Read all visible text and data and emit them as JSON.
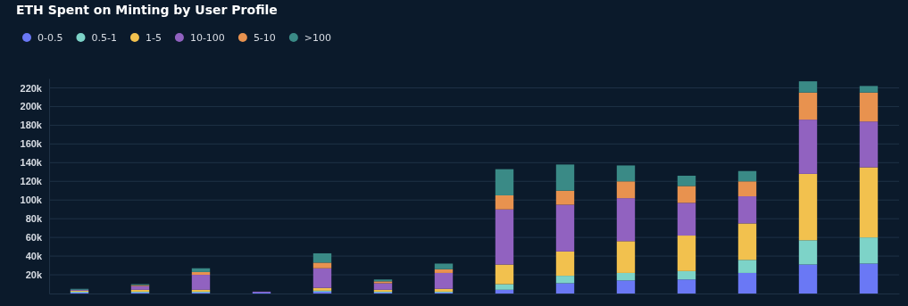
{
  "chart_data": {
    "type": "bar",
    "title": "ETH Spent on Minting by User Profile",
    "categories": [
      null,
      null,
      null,
      null,
      null,
      null,
      null,
      null,
      null,
      null,
      null,
      null,
      null,
      null
    ],
    "stacked": true,
    "legend": "top left",
    "grid": "y",
    "tick_labels": "y",
    "ylim": [
      0,
      230000
    ],
    "yticks": [
      {
        "value": 20000,
        "label": "20k"
      },
      {
        "value": 40000,
        "label": "40k"
      },
      {
        "value": 60000,
        "label": "60k"
      },
      {
        "value": 80000,
        "label": "80k"
      },
      {
        "value": 100000,
        "label": "100k"
      },
      {
        "value": 120000,
        "label": "120k"
      },
      {
        "value": 140000,
        "label": "140k"
      },
      {
        "value": 160000,
        "label": "160k"
      },
      {
        "value": 180000,
        "label": "180k"
      },
      {
        "value": 200000,
        "label": "200k"
      },
      {
        "value": 220000,
        "label": "220k"
      }
    ],
    "series": [
      {
        "name": "0-0.5",
        "color": "#6a78f5",
        "values": [
          1000,
          1000,
          1000,
          1000,
          2000,
          1000,
          1000,
          4000,
          11000,
          14000,
          15000,
          22000,
          31000,
          32000
        ]
      },
      {
        "name": "0.5-1",
        "color": "#7dd3c8",
        "values": [
          1000,
          1000,
          1000,
          0,
          1000,
          1000,
          1000,
          6000,
          8000,
          8000,
          9000,
          14000,
          26000,
          28000
        ]
      },
      {
        "name": "1-5",
        "color": "#f2c14e",
        "values": [
          1000,
          2000,
          2000,
          0,
          3000,
          2000,
          3000,
          21000,
          26000,
          34000,
          38000,
          39000,
          71000,
          75000
        ]
      },
      {
        "name": "10-100",
        "color": "#9162c0",
        "values": [
          1000,
          4000,
          16000,
          1000,
          21000,
          7000,
          17000,
          59000,
          50000,
          46000,
          35000,
          29000,
          58000,
          49000
        ]
      },
      {
        "name": "5-10",
        "color": "#e8924f",
        "values": [
          0,
          1000,
          3000,
          0,
          6000,
          2000,
          4000,
          15000,
          15000,
          18000,
          18000,
          16000,
          29000,
          31000
        ]
      },
      {
        "name": ">100",
        "color": "#3a8a86",
        "values": [
          1000,
          1000,
          4000,
          0,
          10000,
          2000,
          6000,
          28000,
          28000,
          17000,
          11000,
          11000,
          12000,
          7000
        ]
      }
    ]
  }
}
